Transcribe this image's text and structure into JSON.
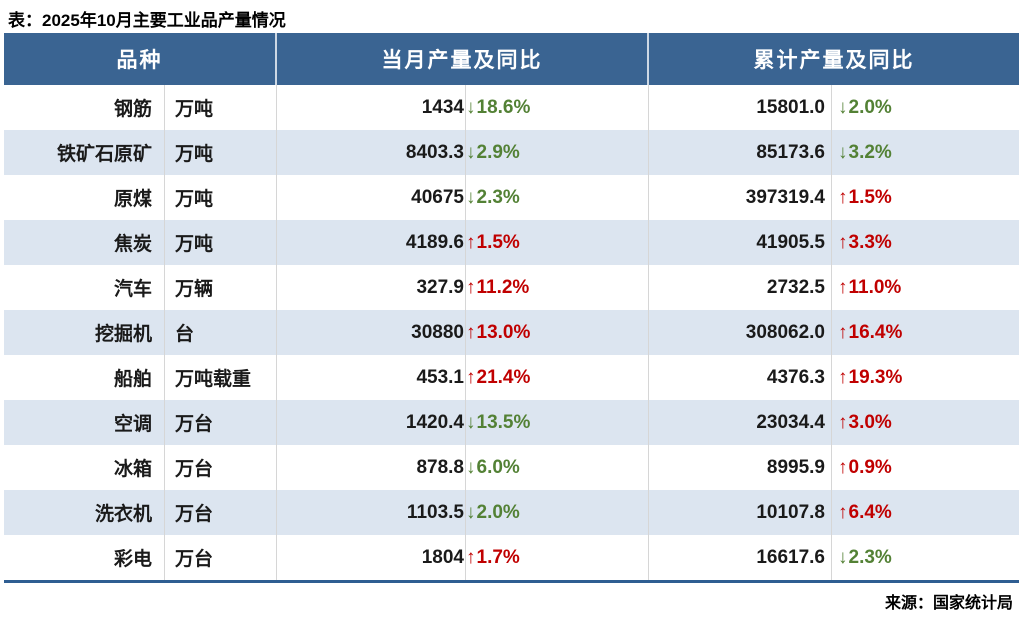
{
  "title": "表：2025年10月主要工业品产量情况",
  "source": "来源：国家统计局",
  "icons": {
    "up_arrow": "↑",
    "down_arrow": "↓"
  },
  "colors": {
    "header_bg": "#3A6492",
    "header_text": "#FFFFFF",
    "stripe_bg": "#DCE5F0",
    "up": "#C00000",
    "down": "#538135",
    "bottom_border": "#2F5E92",
    "gridline": "#D6D6D6",
    "text": "#1A1A1A"
  },
  "table": {
    "headers": {
      "product": "品种",
      "monthly": "当月产量及同比",
      "cumulative": "累计产量及同比"
    },
    "rows": [
      {
        "name": "钢筋",
        "unit": "万吨",
        "monthly": {
          "value": "1434",
          "direction": "down",
          "pct": "18.6%"
        },
        "cumulative": {
          "value": "15801.0",
          "direction": "down",
          "pct": "2.0%"
        }
      },
      {
        "name": "铁矿石原矿",
        "unit": "万吨",
        "monthly": {
          "value": "8403.3",
          "direction": "down",
          "pct": "2.9%"
        },
        "cumulative": {
          "value": "85173.6",
          "direction": "down",
          "pct": "3.2%"
        }
      },
      {
        "name": "原煤",
        "unit": "万吨",
        "monthly": {
          "value": "40675",
          "direction": "down",
          "pct": "2.3%"
        },
        "cumulative": {
          "value": "397319.4",
          "direction": "up",
          "pct": "1.5%"
        }
      },
      {
        "name": "焦炭",
        "unit": "万吨",
        "monthly": {
          "value": "4189.6",
          "direction": "up",
          "pct": "1.5%"
        },
        "cumulative": {
          "value": "41905.5",
          "direction": "up",
          "pct": "3.3%"
        }
      },
      {
        "name": "汽车",
        "unit": "万辆",
        "monthly": {
          "value": "327.9",
          "direction": "up",
          "pct": "11.2%"
        },
        "cumulative": {
          "value": "2732.5",
          "direction": "up",
          "pct": "11.0%"
        }
      },
      {
        "name": "挖掘机",
        "unit": "台",
        "monthly": {
          "value": "30880",
          "direction": "up",
          "pct": "13.0%"
        },
        "cumulative": {
          "value": "308062.0",
          "direction": "up",
          "pct": "16.4%"
        }
      },
      {
        "name": "船舶",
        "unit": "万吨载重",
        "monthly": {
          "value": "453.1",
          "direction": "up",
          "pct": "21.4%"
        },
        "cumulative": {
          "value": "4376.3",
          "direction": "up",
          "pct": "19.3%"
        }
      },
      {
        "name": "空调",
        "unit": "万台",
        "monthly": {
          "value": "1420.4",
          "direction": "down",
          "pct": "13.5%"
        },
        "cumulative": {
          "value": "23034.4",
          "direction": "up",
          "pct": "3.0%"
        }
      },
      {
        "name": "冰箱",
        "unit": "万台",
        "monthly": {
          "value": "878.8",
          "direction": "down",
          "pct": "6.0%"
        },
        "cumulative": {
          "value": "8995.9",
          "direction": "up",
          "pct": "0.9%"
        }
      },
      {
        "name": "洗衣机",
        "unit": "万台",
        "monthly": {
          "value": "1103.5",
          "direction": "down",
          "pct": "2.0%"
        },
        "cumulative": {
          "value": "10107.8",
          "direction": "up",
          "pct": "6.4%"
        }
      },
      {
        "name": "彩电",
        "unit": "万台",
        "monthly": {
          "value": "1804",
          "direction": "up",
          "pct": "1.7%"
        },
        "cumulative": {
          "value": "16617.6",
          "direction": "down",
          "pct": "2.3%"
        }
      }
    ]
  }
}
